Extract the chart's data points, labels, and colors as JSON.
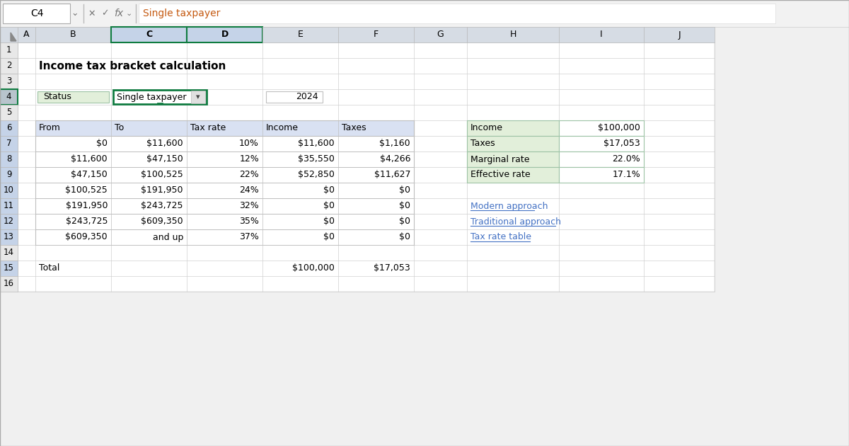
{
  "title": "Income tax bracket calculation",
  "formula_bar_text": "Single taxpayer",
  "cell_ref": "C4",
  "status_label": "Status",
  "status_value": "Single taxpayer",
  "year": "2024",
  "col_letters": [
    "A",
    "B",
    "C",
    "D",
    "E",
    "F",
    "G",
    "H",
    "I",
    "J"
  ],
  "row_numbers": [
    "1",
    "2",
    "3",
    "4",
    "5",
    "6",
    "7",
    "8",
    "9",
    "10",
    "11",
    "12",
    "13",
    "14",
    "15",
    "16"
  ],
  "col_headers": [
    "From",
    "To",
    "Tax rate",
    "Income",
    "Taxes"
  ],
  "bracket_data": [
    [
      "$0",
      "$11,600",
      "10%",
      "$11,600",
      "$1,160"
    ],
    [
      "$11,600",
      "$47,150",
      "12%",
      "$35,550",
      "$4,266"
    ],
    [
      "$47,150",
      "$100,525",
      "22%",
      "$52,850",
      "$11,627"
    ],
    [
      "$100,525",
      "$191,950",
      "24%",
      "$0",
      "$0"
    ],
    [
      "$191,950",
      "$243,725",
      "32%",
      "$0",
      "$0"
    ],
    [
      "$243,725",
      "$609,350",
      "35%",
      "$0",
      "$0"
    ],
    [
      "$609,350",
      "and up",
      "37%",
      "$0",
      "$0"
    ]
  ],
  "summary_labels": [
    "Income",
    "Taxes",
    "Marginal rate",
    "Effective rate"
  ],
  "summary_values": [
    "$100,000",
    "$17,053",
    "22.0%",
    "17.1%"
  ],
  "links": [
    "Modern approach",
    "Traditional approach",
    "Tax rate table"
  ],
  "link_color": "#4472C4",
  "table_header_bg": "#D9E1F2",
  "table_border": "#BFBFBF",
  "col_header_bg": "#D6DCE4",
  "col_header_selected_bg": "#C5D3E8",
  "row_header_bg": "#E8E8E8",
  "selected_cell_border": "#107C41",
  "selected_col_border": "#107C41",
  "summary_label_bg": "#E2EFDA",
  "summary_label_border": "#9DC3A5",
  "status_label_bg": "#E2EFDA",
  "status_label_border": "#9DC3A5",
  "spreadsheet_bg": "#FFFFFF",
  "grid_color": "#D0D0D0",
  "fig_bg": "#F0F0F0",
  "formula_bar_bg": "#F2F2F2",
  "formula_text_color": "#C55A11",
  "icon_color": "#767676"
}
